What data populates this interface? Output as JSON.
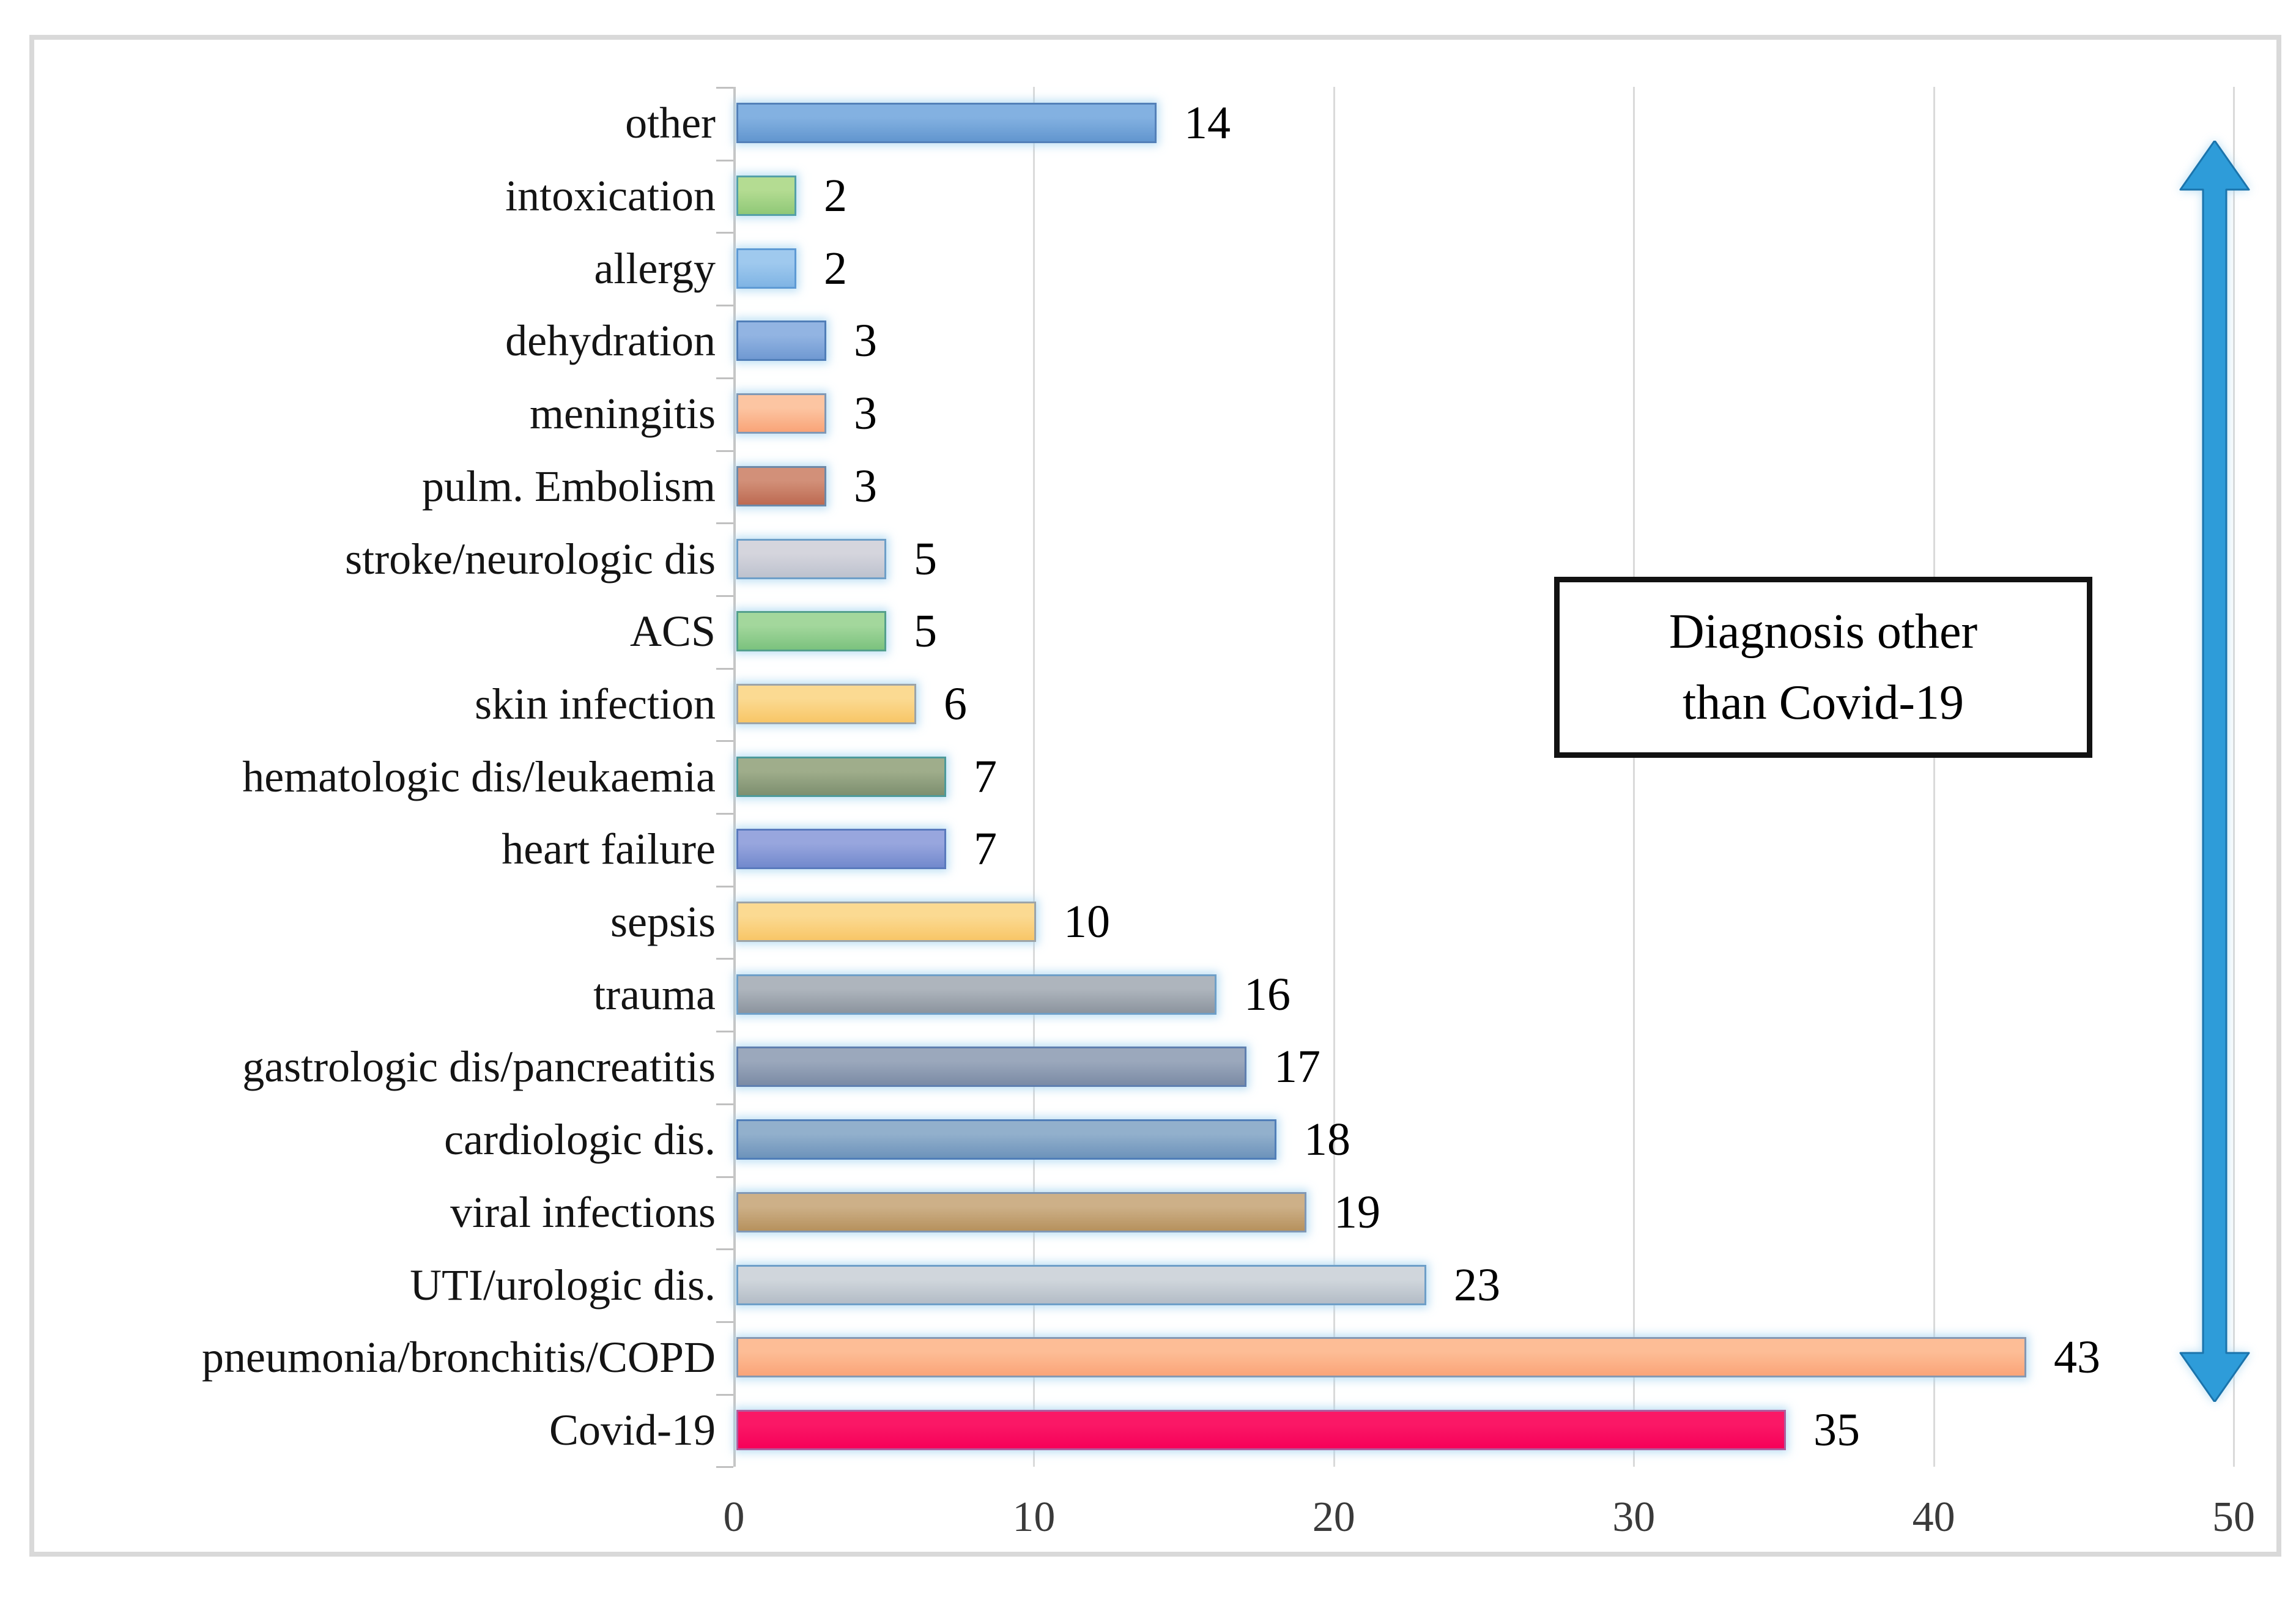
{
  "chart_data": {
    "type": "bar",
    "orientation": "horizontal",
    "title": "",
    "xlabel": "",
    "ylabel": "",
    "xlim": [
      0,
      50
    ],
    "x_ticks": [
      "0",
      "10",
      "20",
      "30",
      "40",
      "50"
    ],
    "grid": true,
    "legend": false,
    "categories": [
      "other",
      "intoxication",
      "allergy",
      "dehydration",
      "meningitis",
      "pulm. Embolism",
      "stroke/neurologic dis",
      "ACS",
      "skin infection",
      "hematologic dis/leukaemia",
      "heart failure",
      "sepsis",
      "trauma",
      "gastrologic dis/pancreatitis",
      "cardiologic dis.",
      "viral infections",
      "UTI/urologic dis.",
      "pneumonia/bronchitis/COPD",
      "Covid-19"
    ],
    "values": [
      14,
      2,
      2,
      3,
      3,
      3,
      5,
      5,
      6,
      7,
      7,
      10,
      16,
      17,
      18,
      19,
      23,
      43,
      35
    ],
    "bar_styles": [
      {
        "top": "#83B1E1",
        "bottom": "#6296CF",
        "border": "#5380B8"
      },
      {
        "top": "#B4DC92",
        "bottom": "#8FC877",
        "border": "#54A0A8"
      },
      {
        "top": "#9FC9EE",
        "bottom": "#7FB4E4",
        "border": "#5E9AD4"
      },
      {
        "top": "#92B4E2",
        "bottom": "#7099D2",
        "border": "#507EB8"
      },
      {
        "top": "#FCC5A2",
        "bottom": "#F9A478",
        "border": "#8098B5"
      },
      {
        "top": "#D29079",
        "bottom": "#BD6A52",
        "border": "#6D89A8"
      },
      {
        "top": "#D5D5DD",
        "bottom": "#BDC2CE",
        "border": "#6E9FC8"
      },
      {
        "top": "#A3D79C",
        "bottom": "#7BC27E",
        "border": "#54A08C"
      },
      {
        "top": "#FBDA92",
        "bottom": "#F8C667",
        "border": "#9CA4A8"
      },
      {
        "top": "#9FAD8B",
        "bottom": "#7D8F6F",
        "border": "#4D9A9A"
      },
      {
        "top": "#98A6DE",
        "bottom": "#7289CD",
        "border": "#5A7ABD"
      },
      {
        "top": "#FBDA92",
        "bottom": "#F8C667",
        "border": "#9CA4A8"
      },
      {
        "top": "#AEB5BD",
        "bottom": "#8C949E",
        "border": "#6E9FC8"
      },
      {
        "top": "#9BA8BC",
        "bottom": "#7B8BA5",
        "border": "#5F7FAF"
      },
      {
        "top": "#92B0CC",
        "bottom": "#6D93BB",
        "border": "#507EB8"
      },
      {
        "top": "#CDB088",
        "bottom": "#B6915D",
        "border": "#8098B5"
      },
      {
        "top": "#D0D6DC",
        "bottom": "#B3BCC6",
        "border": "#6E9FC8"
      },
      {
        "top": "#FDBD96",
        "bottom": "#FAA478",
        "border": "#8598B2"
      },
      {
        "top": "#FA1866",
        "bottom": "#F60059",
        "border": "#AC5E9E"
      }
    ],
    "annotation": {
      "line1": "Diagnosis other",
      "line2": "than Covid-19"
    },
    "arrow": {
      "fill": "#2E9CD9",
      "stroke": "#1B74AC"
    }
  }
}
